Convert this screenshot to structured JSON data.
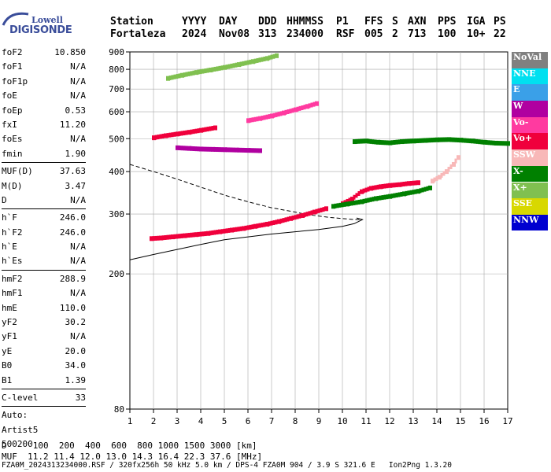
{
  "logo": {
    "line1": "Lowell",
    "line2": "DIGISONDE"
  },
  "header": {
    "labels": [
      "Station",
      "YYYY",
      "DAY",
      "DDD",
      "HHMMSS",
      "P1",
      "FFS",
      "S",
      "AXN",
      "PPS",
      "IGA",
      "PS"
    ],
    "values": [
      "Fortaleza",
      "2024",
      "Nov08",
      "313",
      "234000",
      "RSF",
      "005",
      "2",
      "713",
      "100",
      "10+",
      "22"
    ]
  },
  "params": {
    "group1": [
      {
        "k": "foF2",
        "v": "10.850"
      },
      {
        "k": "foF1",
        "v": "N/A"
      },
      {
        "k": "foF1p",
        "v": "N/A"
      },
      {
        "k": "foE",
        "v": "N/A"
      },
      {
        "k": "foEp",
        "v": "0.53"
      },
      {
        "k": "fxI",
        "v": "11.20"
      },
      {
        "k": "foEs",
        "v": "N/A"
      },
      {
        "k": "fmin",
        "v": "1.90"
      }
    ],
    "group2": [
      {
        "k": "MUF(D)",
        "v": "37.63"
      },
      {
        "k": "M(D)",
        "v": "3.47"
      },
      {
        "k": "D",
        "v": "N/A"
      }
    ],
    "group3": [
      {
        "k": "h`F",
        "v": "246.0"
      },
      {
        "k": "h`F2",
        "v": "246.0"
      },
      {
        "k": "h`E",
        "v": "N/A"
      },
      {
        "k": "h`Es",
        "v": "N/A"
      }
    ],
    "group4": [
      {
        "k": "hmF2",
        "v": "288.9"
      },
      {
        "k": "hmF1",
        "v": "N/A"
      },
      {
        "k": "hmE",
        "v": "110.0"
      },
      {
        "k": "yF2",
        "v": "30.2"
      },
      {
        "k": "yF1",
        "v": "N/A"
      },
      {
        "k": "yE",
        "v": "20.0"
      },
      {
        "k": "B0",
        "v": "34.0"
      },
      {
        "k": "B1",
        "v": "1.39"
      }
    ],
    "group5": [
      {
        "k": "C-level",
        "v": "33"
      }
    ],
    "extra": [
      "Auto:",
      "Artist5",
      "500200"
    ]
  },
  "legend": [
    {
      "label": "NoVal",
      "color": "#808080"
    },
    {
      "label": "NNE",
      "color": "#00e0f0"
    },
    {
      "label": "E",
      "color": "#3aa0e8"
    },
    {
      "label": "W",
      "color": "#b000a0"
    },
    {
      "label": "Vo-",
      "color": "#ff3aa0"
    },
    {
      "label": "Vo+",
      "color": "#f0003c"
    },
    {
      "label": "SSW",
      "color": "#f8b8b8"
    },
    {
      "label": "X-",
      "color": "#008000"
    },
    {
      "label": "X+",
      "color": "#80c050"
    },
    {
      "label": "SSE",
      "color": "#d8d800"
    },
    {
      "label": "NNW",
      "color": "#0000d0"
    }
  ],
  "footer": {
    "line1": "D     100  200  400  600  800 1000 1500 3000 [km]",
    "line2": "MUF  11.2 11.4 12.0 13.0 14.3 16.4 22.3 37.6 [MHz]",
    "line3": "FZA0M_2024313234000.RSF / 320fx256h 50 kHz 5.0 km / DPS-4 FZA0M 904 / 3.9 S 321.6 E   Ion2Png 1.3.20"
  },
  "chart_data": {
    "type": "scatter",
    "title": "",
    "xlabel": "",
    "ylabel": "",
    "xlim": [
      1,
      17
    ],
    "ylim": [
      80,
      900
    ],
    "y_scale": "log",
    "x_ticks": [
      1,
      2,
      3,
      4,
      5,
      6,
      7,
      8,
      9,
      10,
      11,
      12,
      13,
      14,
      15,
      16,
      17
    ],
    "y_ticks": [
      80,
      200,
      300,
      400,
      500,
      600,
      700,
      800,
      900
    ],
    "grid": true,
    "legend_placement": "right",
    "traces": [
      {
        "mode": "O-trace F2 (Vo+)",
        "color": "#f0003c",
        "f": [
          1.9,
          2.3,
          2.8,
          3.3,
          3.8,
          4.3,
          4.8,
          5.3,
          5.8,
          6.3,
          6.8,
          7.3,
          7.8,
          8.3,
          8.8,
          9.3
        ],
        "h": [
          254,
          255,
          257,
          259,
          261,
          263,
          266,
          269,
          272,
          276,
          280,
          285,
          291,
          297,
          304,
          311
        ]
      },
      {
        "mode": "O-trace F2 upper (Vo+)",
        "color": "#f0003c",
        "f": [
          10.0,
          10.4,
          10.8,
          11.2,
          11.6,
          12.0,
          12.4,
          12.8,
          13.2
        ],
        "h": [
          322,
          332,
          349,
          357,
          361,
          364,
          366,
          369,
          371
        ]
      },
      {
        "mode": "X-trace F2 (X-)",
        "color": "#008000",
        "f": [
          9.6,
          10.2,
          10.8,
          11.4,
          12.0,
          12.6,
          13.2,
          13.7
        ],
        "h": [
          316,
          321,
          326,
          333,
          338,
          344,
          350,
          358
        ]
      },
      {
        "mode": "Oblique rising (SSW)",
        "color": "#f8b8b8",
        "f": [
          13.8,
          14.1,
          14.4,
          14.7,
          14.9
        ],
        "h": [
          375,
          385,
          400,
          420,
          440
        ]
      },
      {
        "mode": "Second hop (Vo-)",
        "color": "#ff3aa0",
        "f": [
          6.0,
          6.5,
          7.0,
          7.5,
          8.0,
          8.5,
          8.9
        ],
        "h": [
          565,
          573,
          583,
          595,
          608,
          622,
          634
        ]
      },
      {
        "mode": "Second hop low (Vo+)",
        "color": "#f0003c",
        "f": [
          2.0,
          2.5,
          3.0,
          3.5,
          4.0,
          4.6
        ],
        "h": [
          503,
          510,
          516,
          522,
          529,
          538
        ]
      },
      {
        "mode": "Third hop (X+)",
        "color": "#80c050",
        "f": [
          2.6,
          3.2,
          3.8,
          4.4,
          5.0,
          5.6,
          6.2,
          6.8,
          7.2
        ],
        "h": [
          752,
          768,
          783,
          796,
          810,
          826,
          843,
          861,
          877
        ]
      },
      {
        "mode": "Spread near 480 km (W)",
        "color": "#b000a0",
        "f": [
          3.0,
          3.5,
          4.0,
          4.5,
          5.0,
          5.5,
          6.0,
          6.5
        ],
        "h": [
          470,
          468,
          466,
          465,
          464,
          463,
          462,
          461
        ]
      },
      {
        "mode": "Spread near 490 km (mixed)",
        "color": "#008000",
        "f": [
          10.5,
          11.0,
          11.5,
          12.0,
          12.5,
          13.0,
          13.5,
          14.0,
          14.5,
          15.0,
          15.5,
          16.0,
          16.5,
          17.0
        ],
        "h": [
          490,
          492,
          488,
          486,
          490,
          492,
          494,
          496,
          497,
          495,
          492,
          488,
          485,
          484
        ]
      }
    ],
    "profile_curves": [
      {
        "style": "dashed",
        "f": [
          1.0,
          2.0,
          3.0,
          4.0,
          5.0,
          6.0,
          7.0,
          8.0,
          8.5,
          9.0,
          9.5,
          10.0,
          10.5,
          10.85
        ],
        "h": [
          420,
          400,
          380,
          360,
          341,
          326,
          313,
          304,
          299,
          296,
          293,
          291,
          289,
          289
        ]
      },
      {
        "style": "solid",
        "f": [
          1.0,
          2.0,
          3.0,
          4.0,
          5.0,
          6.0,
          7.0,
          8.0,
          9.0,
          10.0,
          10.5,
          10.85,
          10.6
        ],
        "h": [
          220,
          228,
          236,
          244,
          252,
          257,
          262,
          266,
          270,
          276,
          281,
          289,
          292
        ]
      }
    ]
  }
}
